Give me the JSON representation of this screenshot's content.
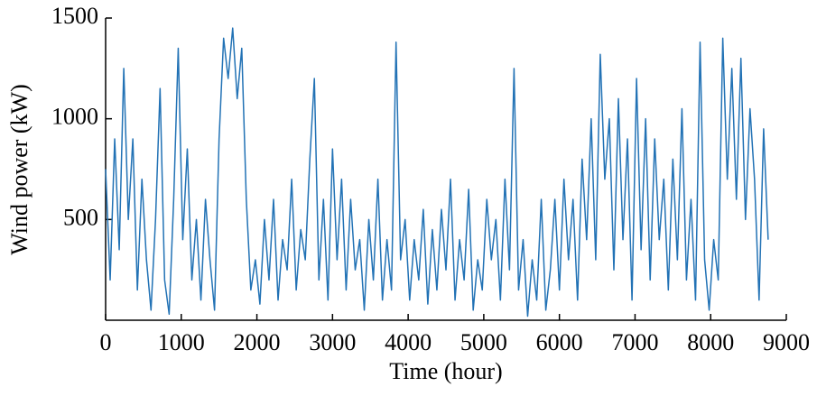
{
  "chart_data": {
    "type": "line",
    "x_label": "Time (hour)",
    "y_label": "Wind power (kW)",
    "xlim": [
      0,
      9000
    ],
    "xticks": [
      0,
      1000,
      2000,
      3000,
      4000,
      5000,
      6000,
      7000,
      8000,
      9000
    ],
    "ylim": [
      0,
      1500
    ],
    "yticks": [
      500,
      1000,
      1500
    ],
    "x": [
      0,
      60,
      120,
      180,
      240,
      300,
      360,
      420,
      480,
      540,
      600,
      660,
      720,
      780,
      840,
      900,
      960,
      1020,
      1080,
      1140,
      1200,
      1260,
      1320,
      1380,
      1440,
      1500,
      1560,
      1620,
      1680,
      1740,
      1800,
      1860,
      1920,
      1980,
      2040,
      2100,
      2160,
      2220,
      2280,
      2340,
      2400,
      2460,
      2520,
      2580,
      2640,
      2700,
      2760,
      2820,
      2880,
      2940,
      3000,
      3060,
      3120,
      3180,
      3240,
      3300,
      3360,
      3420,
      3480,
      3540,
      3600,
      3660,
      3720,
      3780,
      3840,
      3900,
      3960,
      4020,
      4080,
      4140,
      4200,
      4260,
      4320,
      4380,
      4440,
      4500,
      4560,
      4620,
      4680,
      4740,
      4800,
      4860,
      4920,
      4980,
      5040,
      5100,
      5160,
      5220,
      5280,
      5340,
      5400,
      5460,
      5520,
      5580,
      5640,
      5700,
      5760,
      5820,
      5880,
      5940,
      6000,
      6060,
      6120,
      6180,
      6240,
      6300,
      6360,
      6420,
      6480,
      6540,
      6600,
      6660,
      6720,
      6780,
      6840,
      6900,
      6960,
      7020,
      7080,
      7140,
      7200,
      7260,
      7320,
      7380,
      7440,
      7500,
      7560,
      7620,
      7680,
      7740,
      7800,
      7860,
      7920,
      7980,
      8040,
      8100,
      8160,
      8220,
      8280,
      8340,
      8400,
      8460,
      8520,
      8580,
      8640,
      8700,
      8760
    ],
    "series": [
      {
        "color": "#2272b5",
        "values": [
          750,
          200,
          900,
          350,
          1250,
          500,
          900,
          150,
          700,
          300,
          50,
          500,
          1150,
          200,
          30,
          600,
          1350,
          400,
          850,
          200,
          500,
          100,
          600,
          300,
          50,
          900,
          1400,
          1200,
          1450,
          1100,
          1350,
          600,
          150,
          300,
          80,
          500,
          200,
          600,
          100,
          400,
          250,
          700,
          150,
          450,
          300,
          800,
          1200,
          200,
          600,
          100,
          850,
          300,
          700,
          150,
          600,
          250,
          400,
          50,
          500,
          200,
          700,
          100,
          400,
          150,
          1380,
          300,
          500,
          100,
          400,
          200,
          550,
          80,
          450,
          150,
          550,
          250,
          700,
          100,
          400,
          200,
          650,
          50,
          300,
          150,
          600,
          300,
          500,
          100,
          700,
          250,
          1250,
          150,
          400,
          20,
          300,
          100,
          600,
          50,
          250,
          600,
          150,
          700,
          300,
          600,
          100,
          800,
          400,
          1000,
          300,
          1320,
          700,
          1000,
          250,
          1100,
          400,
          900,
          100,
          1200,
          350,
          1000,
          200,
          900,
          400,
          700,
          150,
          800,
          300,
          1050,
          200,
          600,
          100,
          1380,
          300,
          50,
          400,
          200,
          1400,
          700,
          1250,
          600,
          1300,
          500,
          1050,
          700,
          100,
          950,
          400
        ]
      }
    ]
  }
}
